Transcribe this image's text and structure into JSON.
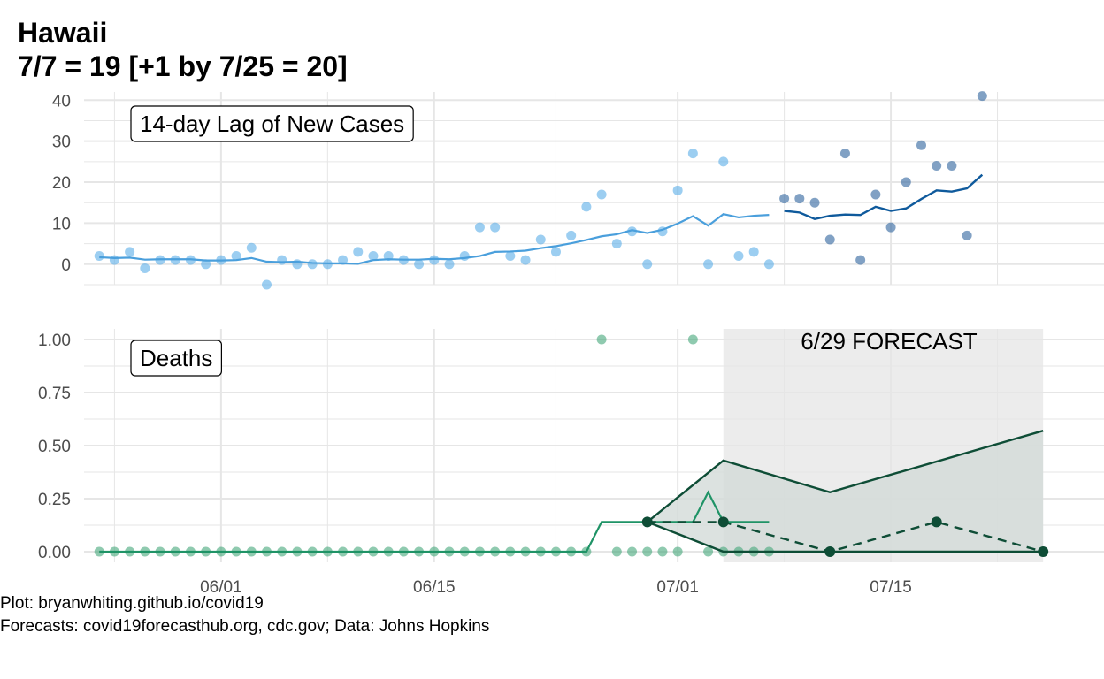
{
  "title": {
    "line1": "Hawaii",
    "line2": "7/7 = 19 [+1 by 7/25 = 20]"
  },
  "caption": {
    "line1": "Plot: bryanwhiting.github.io/covid19",
    "line2": "Forecasts: covid19forecasthub.org, cdc.gov; Data: Johns Hopkins"
  },
  "colors": {
    "cases_point": "#5aaee8",
    "cases_line": "#4a9fdc",
    "cases_recent_point": "#3d6fa5",
    "cases_recent_line": "#0f5a9c",
    "deaths_point": "#45a679",
    "deaths_line": "#1f9366",
    "forecast_line": "#0e4d36",
    "forecast_band": "#d3dbd8",
    "forecast_region": "#ececec",
    "grid": "#e6e6e6"
  },
  "chart_data": [
    {
      "type": "scatter",
      "panel_label": "14-day Lag of New Cases",
      "x_ticks": [
        "06/01",
        "06/15",
        "07/01",
        "07/15"
      ],
      "x_tick_dates": [
        "2020-06-01",
        "2020-06-15",
        "2020-07-01",
        "2020-07-15"
      ],
      "xlim": [
        "2020-05-23",
        "2020-07-29"
      ],
      "y_ticks": [
        "0",
        "10",
        "20",
        "30",
        "40"
      ],
      "ylim": [
        -5,
        42
      ],
      "series": [
        {
          "role": "observed-points",
          "x": [
            "2020-05-24",
            "2020-05-25",
            "2020-05-26",
            "2020-05-27",
            "2020-05-28",
            "2020-05-29",
            "2020-05-30",
            "2020-05-31",
            "2020-06-01",
            "2020-06-02",
            "2020-06-03",
            "2020-06-04",
            "2020-06-05",
            "2020-06-06",
            "2020-06-07",
            "2020-06-08",
            "2020-06-09",
            "2020-06-10",
            "2020-06-11",
            "2020-06-12",
            "2020-06-13",
            "2020-06-14",
            "2020-06-15",
            "2020-06-16",
            "2020-06-17",
            "2020-06-18",
            "2020-06-19",
            "2020-06-20",
            "2020-06-21",
            "2020-06-22",
            "2020-06-23",
            "2020-06-24",
            "2020-06-25",
            "2020-06-26",
            "2020-06-27",
            "2020-06-28",
            "2020-06-29",
            "2020-06-30",
            "2020-07-01",
            "2020-07-02",
            "2020-07-03",
            "2020-07-04",
            "2020-07-05",
            "2020-07-06",
            "2020-07-07"
          ],
          "y": [
            2,
            1,
            3,
            -1,
            1,
            1,
            1,
            0,
            1,
            2,
            4,
            -5,
            1,
            0,
            0,
            0,
            1,
            3,
            2,
            2,
            1,
            0,
            1,
            0,
            2,
            9,
            9,
            2,
            1,
            6,
            3,
            7,
            14,
            17,
            5,
            8,
            0,
            8,
            18,
            27,
            0,
            25,
            2,
            3,
            0
          ]
        },
        {
          "role": "observed-trend",
          "x": [
            "2020-05-24",
            "2020-05-25",
            "2020-05-26",
            "2020-05-27",
            "2020-05-28",
            "2020-05-29",
            "2020-05-30",
            "2020-05-31",
            "2020-06-01",
            "2020-06-02",
            "2020-06-03",
            "2020-06-04",
            "2020-06-05",
            "2020-06-06",
            "2020-06-07",
            "2020-06-08",
            "2020-06-09",
            "2020-06-10",
            "2020-06-11",
            "2020-06-12",
            "2020-06-13",
            "2020-06-14",
            "2020-06-15",
            "2020-06-16",
            "2020-06-17",
            "2020-06-18",
            "2020-06-19",
            "2020-06-20",
            "2020-06-21",
            "2020-06-22",
            "2020-06-23",
            "2020-06-24",
            "2020-06-25",
            "2020-06-26",
            "2020-06-27",
            "2020-06-28",
            "2020-06-29",
            "2020-06-30",
            "2020-07-01",
            "2020-07-02",
            "2020-07-03",
            "2020-07-04",
            "2020-07-05",
            "2020-07-06",
            "2020-07-07"
          ],
          "y": [
            1.7,
            1.5,
            1.6,
            1.1,
            1.2,
            1.2,
            1.2,
            0.9,
            0.9,
            1,
            1.5,
            0.6,
            0.5,
            0.6,
            0.3,
            0.2,
            0.2,
            0.1,
            1,
            1.2,
            1.1,
            1.1,
            1.3,
            1.2,
            1.5,
            2,
            3,
            3.1,
            3.3,
            3.9,
            4.4,
            5.1,
            5.9,
            6.8,
            7.3,
            8.3,
            7.6,
            8.4,
            9.9,
            11.7,
            9.4,
            12.2,
            11.4,
            11.8,
            12
          ]
        },
        {
          "role": "recent-points",
          "x": [
            "2020-07-08",
            "2020-07-09",
            "2020-07-10",
            "2020-07-11",
            "2020-07-12",
            "2020-07-13",
            "2020-07-14",
            "2020-07-15",
            "2020-07-16",
            "2020-07-17",
            "2020-07-18",
            "2020-07-19",
            "2020-07-20",
            "2020-07-21"
          ],
          "y": [
            16,
            16,
            15,
            6,
            27,
            1,
            17,
            9,
            20,
            29,
            24,
            24,
            7,
            41
          ]
        },
        {
          "role": "recent-trend",
          "x": [
            "2020-07-08",
            "2020-07-09",
            "2020-07-10",
            "2020-07-11",
            "2020-07-12",
            "2020-07-13",
            "2020-07-14",
            "2020-07-15",
            "2020-07-16",
            "2020-07-17",
            "2020-07-18",
            "2020-07-19",
            "2020-07-20",
            "2020-07-21"
          ],
          "y": [
            13,
            12.6,
            11,
            11.8,
            12.1,
            12,
            14,
            13,
            13.6,
            15.9,
            18,
            17.7,
            18.5,
            21.8
          ]
        }
      ]
    },
    {
      "type": "scatter",
      "panel_label": "Deaths",
      "forecast_label": "6/29 FORECAST",
      "forecast_region": [
        "2020-07-04",
        "2020-07-25"
      ],
      "x_ticks": [
        "06/01",
        "06/15",
        "07/01",
        "07/15"
      ],
      "x_tick_dates": [
        "2020-06-01",
        "2020-06-15",
        "2020-07-01",
        "2020-07-15"
      ],
      "xlim": [
        "2020-05-23",
        "2020-07-29"
      ],
      "y_ticks": [
        "0.00",
        "0.25",
        "0.50",
        "0.75",
        "1.00"
      ],
      "ylim": [
        -0.05,
        1.05
      ],
      "series": [
        {
          "role": "observed-points",
          "x": [
            "2020-05-24",
            "2020-05-25",
            "2020-05-26",
            "2020-05-27",
            "2020-05-28",
            "2020-05-29",
            "2020-05-30",
            "2020-05-31",
            "2020-06-01",
            "2020-06-02",
            "2020-06-03",
            "2020-06-04",
            "2020-06-05",
            "2020-06-06",
            "2020-06-07",
            "2020-06-08",
            "2020-06-09",
            "2020-06-10",
            "2020-06-11",
            "2020-06-12",
            "2020-06-13",
            "2020-06-14",
            "2020-06-15",
            "2020-06-16",
            "2020-06-17",
            "2020-06-18",
            "2020-06-19",
            "2020-06-20",
            "2020-06-21",
            "2020-06-22",
            "2020-06-23",
            "2020-06-24",
            "2020-06-25",
            "2020-06-26",
            "2020-06-27",
            "2020-06-28",
            "2020-06-29",
            "2020-06-30",
            "2020-07-01",
            "2020-07-02",
            "2020-07-03",
            "2020-07-04",
            "2020-07-05",
            "2020-07-06",
            "2020-07-07"
          ],
          "y": [
            0,
            0,
            0,
            0,
            0,
            0,
            0,
            0,
            0,
            0,
            0,
            0,
            0,
            0,
            0,
            0,
            0,
            0,
            0,
            0,
            0,
            0,
            0,
            0,
            0,
            0,
            0,
            0,
            0,
            0,
            0,
            0,
            0,
            1,
            0,
            0,
            0,
            0,
            0,
            1,
            0,
            0,
            0,
            0,
            0
          ]
        },
        {
          "role": "observed-trend",
          "x": [
            "2020-05-24",
            "2020-06-25",
            "2020-06-26",
            "2020-07-02",
            "2020-07-03",
            "2020-07-04",
            "2020-07-07"
          ],
          "y": [
            0,
            0,
            0.14,
            0.14,
            0.28,
            0.14,
            0.14
          ]
        },
        {
          "role": "forecast-median",
          "x": [
            "2020-06-29",
            "2020-07-04",
            "2020-07-11",
            "2020-07-18",
            "2020-07-25"
          ],
          "y": [
            0.14,
            0.14,
            0,
            0.14,
            0
          ]
        },
        {
          "role": "forecast-upper",
          "x": [
            "2020-06-29",
            "2020-07-04",
            "2020-07-11",
            "2020-07-25"
          ],
          "y": [
            0.14,
            0.43,
            0.28,
            0.57
          ]
        },
        {
          "role": "forecast-lower",
          "x": [
            "2020-06-29",
            "2020-07-04",
            "2020-07-11",
            "2020-07-25"
          ],
          "y": [
            0.14,
            0,
            0,
            0
          ]
        }
      ]
    }
  ]
}
